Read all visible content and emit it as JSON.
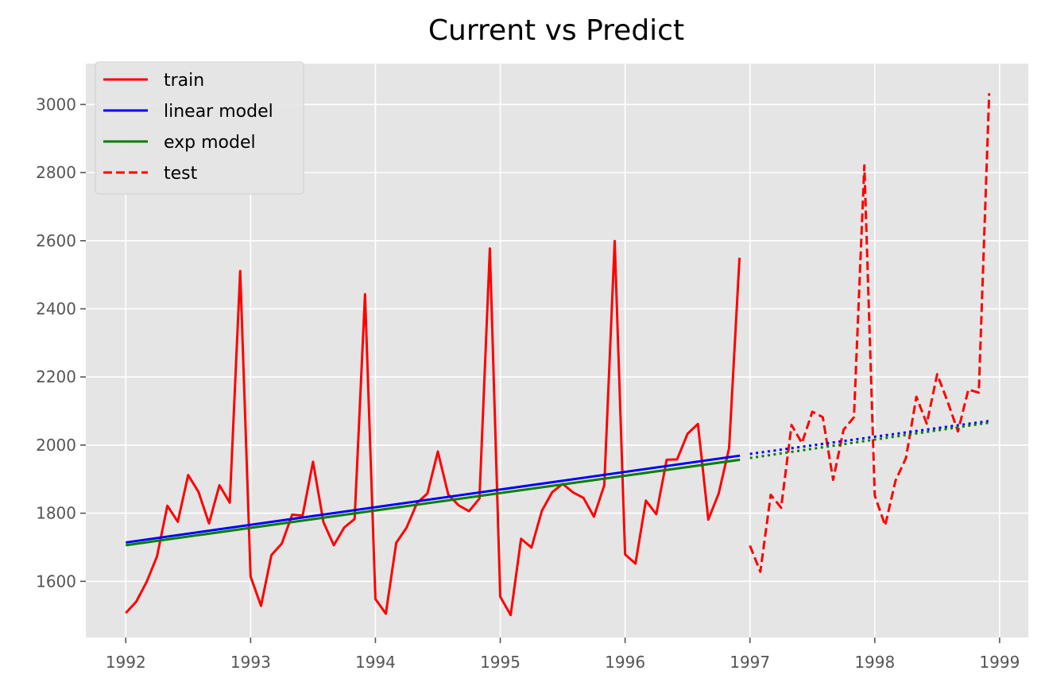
{
  "chart_data": {
    "type": "line",
    "title": "Current vs Predict",
    "xlabel": "",
    "ylabel": "",
    "xlim": [
      1991.68,
      1999.23
    ],
    "ylim": [
      1435,
      3120
    ],
    "xticks": [
      1992,
      1993,
      1994,
      1995,
      1996,
      1997,
      1998,
      1999
    ],
    "xtick_labels": [
      "1992",
      "1993",
      "1994",
      "1995",
      "1996",
      "1997",
      "1998",
      "1999"
    ],
    "yticks": [
      1600,
      1800,
      2000,
      2200,
      2400,
      2600,
      2800,
      3000
    ],
    "ytick_labels": [
      "1600",
      "1800",
      "2000",
      "2200",
      "2400",
      "2600",
      "2800",
      "3000"
    ],
    "grid": true,
    "legend_position": "upper-left",
    "series": [
      {
        "name": "train",
        "color": "#ff0000",
        "style": "solid",
        "x_start": 1992.0,
        "step": 0.08333,
        "values": [
          1507,
          1540,
          1598,
          1673,
          1822,
          1775,
          1912,
          1862,
          1770,
          1882,
          1831,
          2511,
          1614,
          1528,
          1677,
          1711,
          1796,
          1793,
          1951,
          1774,
          1706,
          1758,
          1783,
          2443,
          1548,
          1505,
          1713,
          1758,
          1830,
          1858,
          1981,
          1855,
          1823,
          1806,
          1843,
          2577,
          1555,
          1501,
          1725,
          1699,
          1807,
          1862,
          1886,
          1861,
          1845,
          1790,
          1882,
          2599,
          1679,
          1652,
          1837,
          1797,
          1957,
          1958,
          2033,
          2062,
          1781,
          1858,
          1991,
          2550
        ]
      },
      {
        "name": "linear model",
        "color": "#0000ff",
        "style": "solid",
        "x": [
          1992.0,
          1996.92
        ],
        "values": [
          1714,
          1969
        ]
      },
      {
        "name": "exp model",
        "color": "#008000",
        "style": "solid",
        "x": [
          1992.0,
          1996.92
        ],
        "values": [
          1706,
          1957
        ]
      },
      {
        "name": "test",
        "color": "#ff0000",
        "style": "dashed",
        "x_start": 1997.0,
        "step": 0.08333,
        "values": [
          1705,
          1628,
          1854,
          1816,
          2059,
          2006,
          2098,
          2082,
          1898,
          2045,
          2082,
          2821,
          1852,
          1764,
          1896,
          1962,
          2142,
          2063,
          2208,
          2128,
          2040,
          2163,
          2154,
          3033
        ]
      },
      {
        "color": "#0000ff",
        "style": "dotted",
        "x": [
          1997.0,
          1998.92
        ],
        "values": [
          1974,
          2071
        ]
      },
      {
        "color": "#008000",
        "style": "dotted",
        "x": [
          1997.0,
          1998.92
        ],
        "values": [
          1962,
          2066
        ]
      }
    ]
  },
  "colors": {
    "axes_background": "#e5e5e5",
    "grid": "#ffffff",
    "tick_label": "#555555"
  }
}
